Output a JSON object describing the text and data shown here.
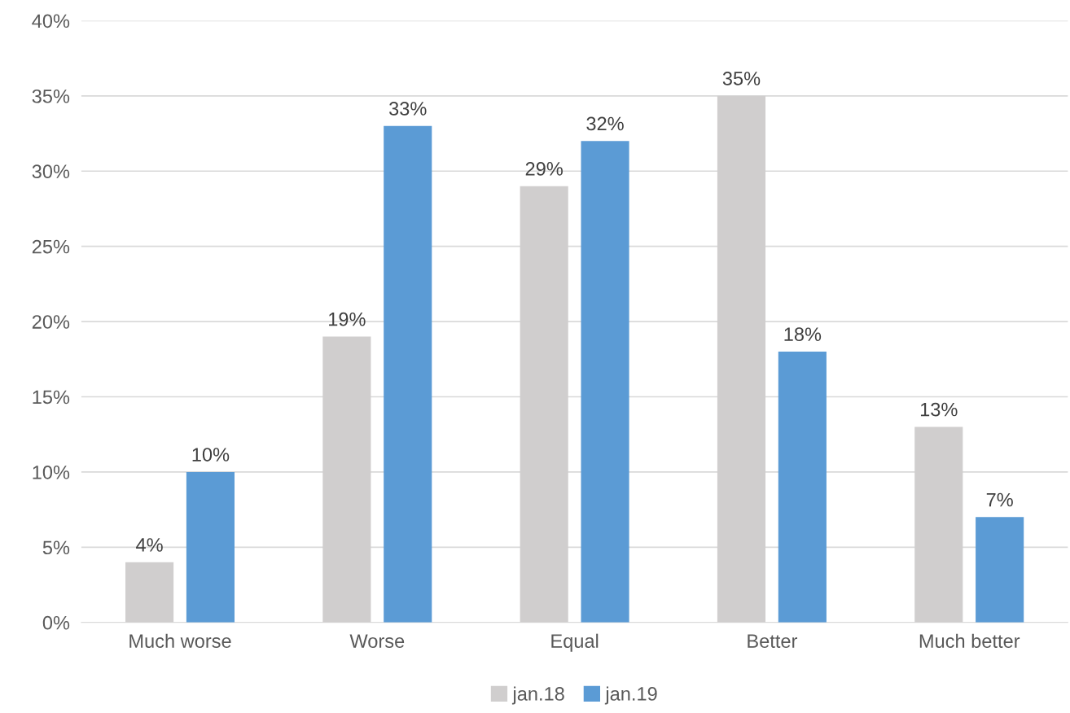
{
  "chart_data": {
    "type": "bar",
    "categories": [
      "Much worse",
      "Worse",
      "Equal",
      "Better",
      "Much better"
    ],
    "series": [
      {
        "name": "jan.18",
        "color": "#d0cece",
        "values": [
          4,
          19,
          29,
          35,
          13
        ],
        "value_labels": [
          "4%",
          "19%",
          "29%",
          "35%",
          "13%"
        ]
      },
      {
        "name": "jan.19",
        "color": "#5b9bd5",
        "values": [
          10,
          33,
          32,
          18,
          7
        ],
        "value_labels": [
          "10%",
          "33%",
          "32%",
          "18%",
          "7%"
        ]
      }
    ],
    "ylim": [
      0,
      40
    ],
    "yticks": [
      {
        "value": 0,
        "label": "0%"
      },
      {
        "value": 5,
        "label": "5%"
      },
      {
        "value": 10,
        "label": "10%"
      },
      {
        "value": 15,
        "label": "15%"
      },
      {
        "value": 20,
        "label": "20%"
      },
      {
        "value": 25,
        "label": "25%"
      },
      {
        "value": 30,
        "label": "30%"
      },
      {
        "value": 35,
        "label": "35%"
      },
      {
        "value": 40,
        "label": "40%"
      }
    ],
    "grid": "y",
    "legend": "bottom"
  }
}
